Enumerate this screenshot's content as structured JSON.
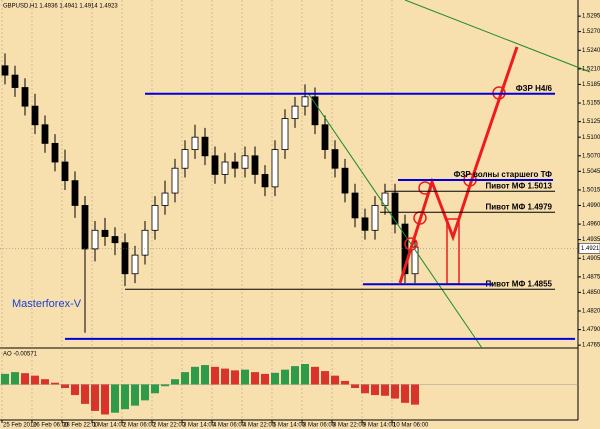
{
  "chart_data": {
    "type": "candlestick",
    "title": "GBPUSD,H1 1.4936 1.4941 1.4914 1.4923",
    "watermark": "Masterforex-V",
    "categories": [
      "25 Feb 2010",
      null,
      null,
      "26 Feb 06:00",
      null,
      null,
      "28 Feb 22:00",
      null,
      null,
      "1 Mar 14:00",
      null,
      null,
      "2 Mar 06:00",
      null,
      null,
      "2 Mar 22:00",
      null,
      null,
      "3 Mar 14:00",
      null,
      null,
      "4 Mar 06:00",
      null,
      null,
      "4 Mar 22:00",
      null,
      null,
      "5 Mar 14:00",
      null,
      null,
      "8 Mar 06:00",
      null,
      null,
      "8 Mar 22:00",
      null,
      null,
      "9 Mar 14:00",
      null,
      null,
      "10 Mar 06:00",
      null,
      null
    ],
    "open": [
      1.5215,
      1.52,
      1.518,
      1.515,
      1.512,
      1.509,
      1.506,
      1.503,
      1.499,
      1.492,
      1.495,
      1.494,
      1.493,
      1.488,
      1.491,
      1.495,
      1.499,
      1.501,
      1.505,
      1.508,
      1.51,
      1.507,
      1.504,
      1.506,
      1.505,
      1.507,
      1.504,
      1.502,
      1.508,
      1.513,
      1.515,
      1.5165,
      1.512,
      1.508,
      1.505,
      1.501,
      1.497,
      1.495,
      1.499,
      1.501,
      1.496,
      1.488
    ],
    "high": [
      1.5235,
      1.5215,
      1.5195,
      1.517,
      1.5135,
      1.5105,
      1.508,
      1.5045,
      1.5005,
      1.4965,
      1.497,
      1.4955,
      1.4945,
      1.4925,
      1.4965,
      1.5005,
      1.503,
      1.5065,
      1.5095,
      1.512,
      1.5115,
      1.5085,
      1.5075,
      1.5075,
      1.5085,
      1.5085,
      1.5055,
      1.5095,
      1.5145,
      1.5165,
      1.5185,
      1.518,
      1.5135,
      1.5095,
      1.5065,
      1.5025,
      1.4985,
      1.5005,
      1.5025,
      1.5025,
      1.4975,
      1.4941
    ],
    "low": [
      1.5185,
      1.5165,
      1.5135,
      1.5105,
      1.5075,
      1.5045,
      1.5015,
      1.497,
      1.4785,
      1.49,
      1.4925,
      1.491,
      1.486,
      1.4865,
      1.4895,
      1.4935,
      1.4975,
      1.4995,
      1.5035,
      1.5065,
      1.5055,
      1.5025,
      1.5025,
      1.5035,
      1.5035,
      1.5025,
      1.5005,
      1.5005,
      1.5065,
      1.5115,
      1.5135,
      1.5105,
      1.5065,
      1.5035,
      1.4995,
      1.4955,
      1.4935,
      1.4935,
      1.4975,
      1.4945,
      1.4865,
      1.4865
    ],
    "close": [
      1.52,
      1.518,
      1.515,
      1.512,
      1.509,
      1.506,
      1.503,
      1.499,
      1.492,
      1.495,
      1.494,
      1.493,
      1.488,
      1.491,
      1.495,
      1.499,
      1.501,
      1.505,
      1.508,
      1.51,
      1.507,
      1.504,
      1.506,
      1.505,
      1.507,
      1.504,
      1.502,
      1.508,
      1.513,
      1.515,
      1.5165,
      1.512,
      1.508,
      1.505,
      1.501,
      1.497,
      1.495,
      1.499,
      1.501,
      1.496,
      1.488,
      1.4923
    ],
    "current_price": 1.4921,
    "ylim": [
      1.4762,
      1.5321
    ],
    "yticks": [
      1.5295,
      {
        "value": 1.527,
        "label": "1.5270"
      },
      {
        "value": 1.524,
        "label": "1.5240"
      },
      {
        "value": 1.521,
        "label": "1.5210"
      },
      1.5185,
      1.5155,
      1.5125,
      {
        "value": 1.51,
        "label": "1.5100"
      },
      {
        "value": 1.507,
        "label": "1.5070"
      },
      1.5045,
      1.5015,
      {
        "value": 1.499,
        "label": "1.4990"
      },
      {
        "value": 1.496,
        "label": "1.4960"
      },
      1.4935,
      1.4905,
      1.4875,
      {
        "value": 1.485,
        "label": "1.4850"
      },
      {
        "value": 1.482,
        "label": "1.4820"
      },
      {
        "value": 1.479,
        "label": "1.4790"
      },
      1.4765
    ],
    "levels": [
      {
        "label": "ФЗР H4/6",
        "value": 1.517,
        "color": "#0000dd"
      },
      {
        "label": "ФЗР волны старшего ТФ",
        "value": 1.5031,
        "color": "#0000dd"
      },
      {
        "label": "Пивот МФ 1.5013",
        "value": 1.5013,
        "color": "#000000"
      },
      {
        "label": "Пивот МФ 1.4979",
        "value": 1.4979,
        "color": "#000000"
      },
      {
        "label": "Пивот МФ 1.4855",
        "value": 1.4855,
        "color": "#000000"
      },
      {
        "value": 1.4863,
        "color": "#0000dd"
      },
      {
        "value": 1.4775,
        "color": "#0000dd"
      }
    ],
    "ao_label": "AO -0.00571",
    "ao": [
      0.003,
      0.0035,
      0.0032,
      0.0025,
      0.0015,
      0.0005,
      -0.001,
      -0.003,
      -0.0055,
      -0.0075,
      -0.0085,
      -0.008,
      -0.007,
      -0.006,
      -0.0045,
      -0.0025,
      -0.0005,
      0.0015,
      0.0035,
      0.005,
      0.0055,
      0.005,
      0.0045,
      0.004,
      0.0042,
      0.0035,
      0.003,
      0.0033,
      0.0042,
      0.0052,
      0.0058,
      0.005,
      0.0038,
      0.0025,
      0.001,
      -0.001,
      -0.0025,
      -0.003,
      -0.0032,
      -0.004,
      -0.0052,
      -0.00571
    ],
    "ao_ylim": [
      -0.0095,
      0.0075
    ],
    "ao_up_color": "#2e9b4a",
    "ao_down_color": "#d8342c",
    "grid": true
  }
}
